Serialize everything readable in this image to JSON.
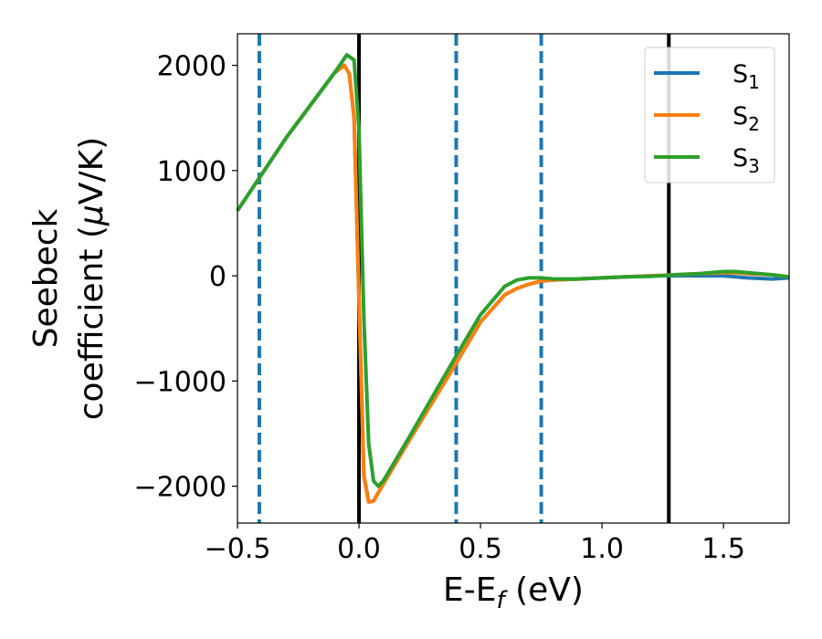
{
  "chart_data": {
    "type": "line",
    "xlabel_main": "E-E",
    "xlabel_sub": "f",
    "xlabel_unit": " (eV)",
    "ylabel_line1": "Seebeck",
    "ylabel_line2_text": "coefficient  (",
    "ylabel_line2_mu": "μ",
    "ylabel_line2_unit": "V/K)",
    "xlim": [
      -0.5,
      1.77
    ],
    "ylim": [
      -2350,
      2300
    ],
    "xticks": [
      -0.5,
      0.0,
      0.5,
      1.0,
      1.5
    ],
    "xtick_labels": [
      "−0.5",
      "0.0",
      "0.5",
      "1.0",
      "1.5"
    ],
    "yticks": [
      -2000,
      -1000,
      0,
      1000,
      2000
    ],
    "ytick_labels": [
      "−2000",
      "−1000",
      "0",
      "1000",
      "2000"
    ],
    "grid": false,
    "legend_position": "top-right",
    "vertical_lines": [
      {
        "x": -0.41,
        "style": "dashed",
        "color": "#1f77b4"
      },
      {
        "x": 0.0,
        "style": "solid",
        "color": "#000000"
      },
      {
        "x": 0.4,
        "style": "dashed",
        "color": "#1f77b4"
      },
      {
        "x": 0.75,
        "style": "dashed",
        "color": "#1f77b4"
      },
      {
        "x": 1.275,
        "style": "solid",
        "color": "#000000"
      }
    ],
    "series": [
      {
        "name": "S",
        "sub": "1",
        "color": "#1f77b4",
        "x": [
          -0.5,
          -0.3,
          -0.1,
          -0.06,
          -0.04,
          -0.02,
          0.0,
          0.02,
          0.04,
          0.06,
          0.1,
          0.2,
          0.3,
          0.4,
          0.5,
          0.6,
          0.65,
          0.7,
          0.75,
          0.8,
          0.9,
          1.0,
          1.1,
          1.2,
          1.3,
          1.4,
          1.5,
          1.55,
          1.6,
          1.7,
          1.77
        ],
        "y": [
          620,
          1310,
          1930,
          2000,
          1920,
          1500,
          -200,
          -1900,
          -2150,
          -2140,
          -1980,
          -1590,
          -1210,
          -830,
          -440,
          -180,
          -120,
          -80,
          -50,
          -40,
          -30,
          -20,
          -10,
          0,
          0,
          0,
          0,
          -10,
          -20,
          -30,
          -20
        ]
      },
      {
        "name": "S",
        "sub": "2",
        "color": "#ff7f0e",
        "x": [
          -0.5,
          -0.3,
          -0.1,
          -0.06,
          -0.04,
          -0.02,
          0.0,
          0.02,
          0.04,
          0.06,
          0.1,
          0.2,
          0.3,
          0.4,
          0.5,
          0.6,
          0.65,
          0.7,
          0.75,
          0.8,
          0.9,
          1.0,
          1.1,
          1.2,
          1.3,
          1.4,
          1.5,
          1.55,
          1.6,
          1.7,
          1.77
        ],
        "y": [
          620,
          1310,
          1930,
          2000,
          1920,
          1500,
          -200,
          -1900,
          -2150,
          -2140,
          -1980,
          -1590,
          -1210,
          -830,
          -440,
          -180,
          -120,
          -80,
          -50,
          -40,
          -30,
          -20,
          -10,
          0,
          10,
          20,
          30,
          30,
          20,
          10,
          -10
        ]
      },
      {
        "name": "S",
        "sub": "3",
        "color": "#2ca02c",
        "x": [
          -0.5,
          -0.3,
          -0.1,
          -0.05,
          -0.02,
          0.0,
          0.02,
          0.04,
          0.06,
          0.08,
          0.1,
          0.2,
          0.3,
          0.4,
          0.5,
          0.6,
          0.65,
          0.7,
          0.75,
          0.8,
          0.9,
          1.0,
          1.1,
          1.2,
          1.3,
          1.4,
          1.5,
          1.55,
          1.6,
          1.7,
          1.77
        ],
        "y": [
          620,
          1310,
          1930,
          2100,
          2050,
          1400,
          -400,
          -1600,
          -1950,
          -2000,
          -1950,
          -1560,
          -1160,
          -760,
          -370,
          -100,
          -40,
          -20,
          -20,
          -30,
          -30,
          -20,
          -10,
          -5,
          10,
          20,
          40,
          40,
          30,
          10,
          -10
        ]
      }
    ]
  }
}
